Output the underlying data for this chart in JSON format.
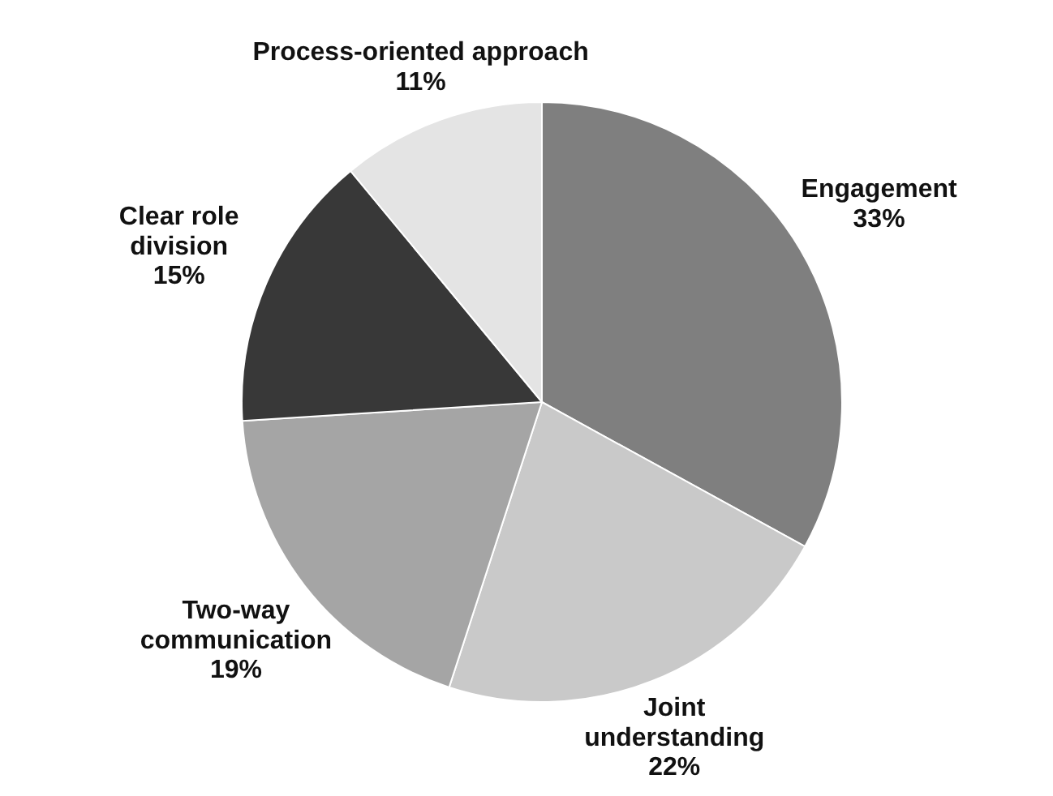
{
  "chart_data": {
    "type": "pie",
    "categories": [
      "Engagement",
      "Joint understanding",
      "Two-way communication",
      "Clear role division",
      "Process-oriented approach"
    ],
    "values": [
      33,
      22,
      19,
      15,
      11
    ],
    "colors": [
      "#7f7f7f",
      "#c9c9c9",
      "#a5a5a5",
      "#383838",
      "#e4e4e4"
    ],
    "value_labels": [
      "33%",
      "22%",
      "19%",
      "15%",
      "11%"
    ]
  }
}
